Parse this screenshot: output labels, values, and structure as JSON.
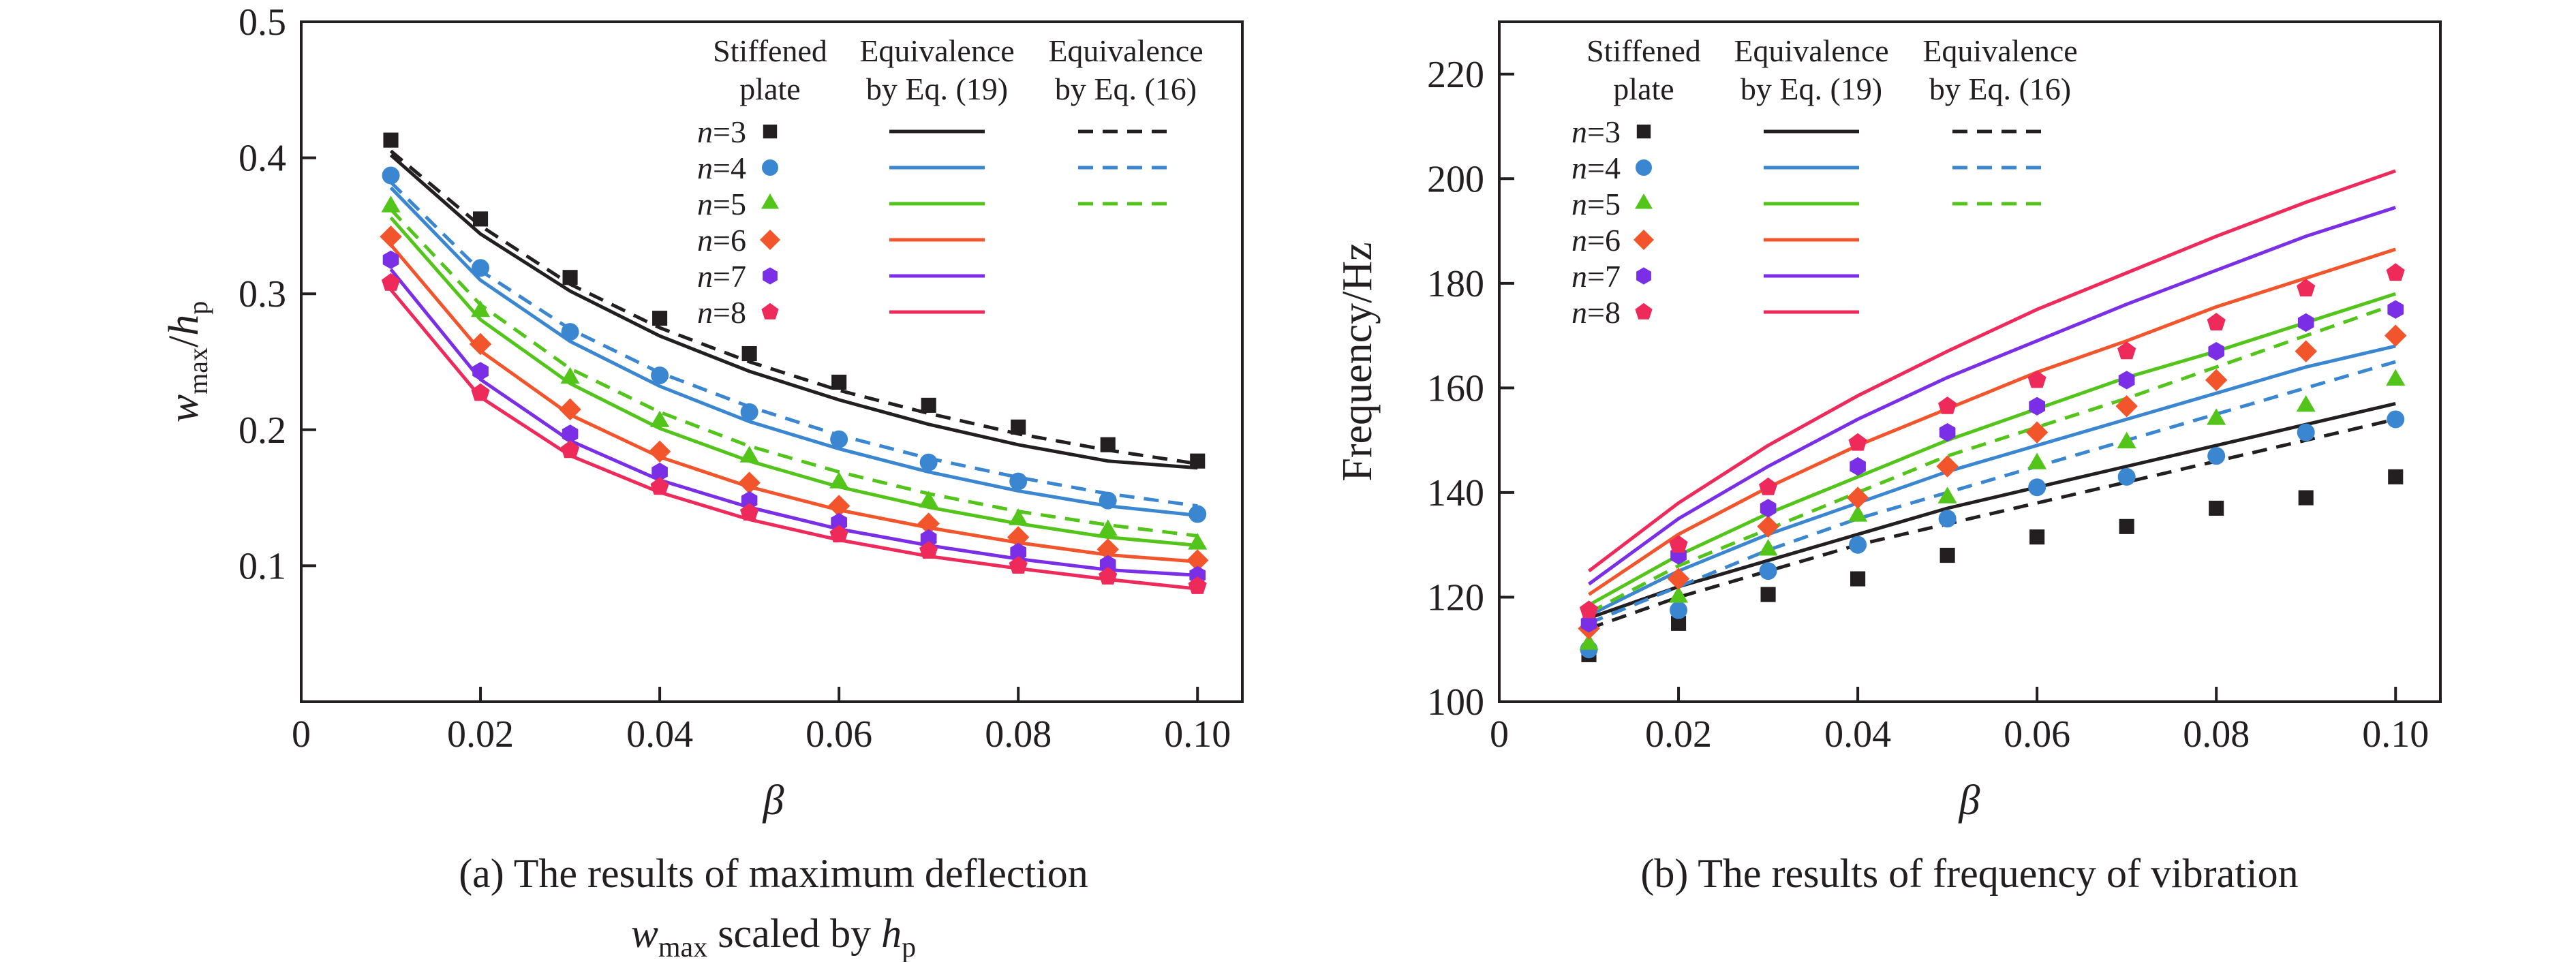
{
  "figure": {
    "caption_a": {
      "line1": "(a) The results of maximum deflection",
      "line2_var": "w",
      "line2_sub": "max",
      "line2_mid": " scaled by ",
      "line2_var2": "h",
      "line2_sub2": "p"
    },
    "caption_b": "(b) The results of frequency of vibration"
  },
  "legend": {
    "headers": {
      "col1": [
        "Stiffened",
        "plate"
      ],
      "col2": [
        "Equivalence",
        "by Eq. (19)"
      ],
      "col3": [
        "Equivalence",
        "by Eq. (16)"
      ]
    },
    "rows": [
      {
        "var": "n",
        "label": "=3",
        "color": "#231f20",
        "marker": "square",
        "dashed": true
      },
      {
        "var": "n",
        "label": "=4",
        "color": "#3b86d1",
        "marker": "circle",
        "dashed": true
      },
      {
        "var": "n",
        "label": "=5",
        "color": "#52c41a",
        "marker": "triangle",
        "dashed": true
      },
      {
        "var": "n",
        "label": "=6",
        "color": "#f2552c",
        "marker": "diamond",
        "dashed": false
      },
      {
        "var": "n",
        "label": "=7",
        "color": "#7a2ee6",
        "marker": "hexagon",
        "dashed": false
      },
      {
        "var": "n",
        "label": "=8",
        "color": "#ee2a5a",
        "marker": "pentagon",
        "dashed": false
      }
    ]
  },
  "chart_data": [
    {
      "type": "line",
      "panel": "a",
      "xlabel": "β",
      "ylabel": {
        "var": "w",
        "sub": "max",
        "slash": "/",
        "var2": "h",
        "sub2": "p"
      },
      "xlim": [
        0,
        0.105
      ],
      "ylim": [
        0,
        0.5
      ],
      "xticks": [
        0,
        0.02,
        0.04,
        0.06,
        0.08,
        0.1
      ],
      "xtick_labels": [
        "0",
        "0.02",
        "0.04",
        "0.06",
        "0.08",
        "0.10"
      ],
      "yticks": [
        0.1,
        0.2,
        0.3,
        0.4,
        0.5
      ],
      "ytick_labels": [
        "0.1",
        "0.2",
        "0.3",
        "0.4",
        "0.5"
      ],
      "x": [
        0.01,
        0.02,
        0.03,
        0.04,
        0.05,
        0.06,
        0.07,
        0.08,
        0.09,
        0.1
      ],
      "series": [
        {
          "name": "n=3",
          "scatter": [
            0.413,
            0.355,
            0.312,
            0.282,
            0.256,
            0.235,
            0.218,
            0.202,
            0.189,
            0.177
          ],
          "eq19": [
            0.402,
            0.344,
            0.302,
            0.269,
            0.243,
            0.222,
            0.204,
            0.189,
            0.177,
            0.172
          ],
          "eq16": [
            0.405,
            0.35,
            0.307,
            0.275,
            0.25,
            0.229,
            0.212,
            0.197,
            0.185,
            0.175
          ]
        },
        {
          "name": "n=4",
          "scatter": [
            0.387,
            0.319,
            0.272,
            0.24,
            0.213,
            0.193,
            0.176,
            0.162,
            0.148,
            0.138
          ],
          "eq19": [
            0.378,
            0.31,
            0.265,
            0.232,
            0.206,
            0.186,
            0.169,
            0.155,
            0.144,
            0.137
          ],
          "eq16": [
            0.382,
            0.317,
            0.274,
            0.242,
            0.217,
            0.196,
            0.179,
            0.165,
            0.153,
            0.144
          ]
        },
        {
          "name": "n=5",
          "scatter": [
            0.364,
            0.287,
            0.238,
            0.206,
            0.18,
            0.161,
            0.147,
            0.134,
            0.126,
            0.116
          ],
          "eq19": [
            0.356,
            0.281,
            0.234,
            0.201,
            0.177,
            0.158,
            0.143,
            0.131,
            0.121,
            0.115
          ],
          "eq16": [
            0.362,
            0.292,
            0.245,
            0.213,
            0.188,
            0.169,
            0.153,
            0.14,
            0.13,
            0.122
          ]
        },
        {
          "name": "n=6",
          "scatter": [
            0.342,
            0.263,
            0.215,
            0.184,
            0.161,
            0.144,
            0.131,
            0.121,
            0.112,
            0.104
          ],
          "eq19": [
            0.336,
            0.258,
            0.211,
            0.18,
            0.158,
            0.141,
            0.128,
            0.117,
            0.108,
            0.103
          ]
        },
        {
          "name": "n=7",
          "scatter": [
            0.325,
            0.243,
            0.197,
            0.169,
            0.148,
            0.132,
            0.12,
            0.11,
            0.101,
            0.093
          ],
          "eq19": [
            0.318,
            0.237,
            0.192,
            0.163,
            0.143,
            0.127,
            0.115,
            0.105,
            0.097,
            0.093
          ]
        },
        {
          "name": "n=8",
          "scatter": [
            0.308,
            0.227,
            0.185,
            0.158,
            0.139,
            0.123,
            0.111,
            0.1,
            0.092,
            0.085
          ],
          "eq19": [
            0.303,
            0.224,
            0.181,
            0.154,
            0.134,
            0.119,
            0.107,
            0.098,
            0.09,
            0.083
          ]
        }
      ]
    },
    {
      "type": "line",
      "panel": "b",
      "xlabel": "β",
      "ylabel": "Frequency/Hz",
      "xlim": [
        0,
        0.105
      ],
      "ylim": [
        100,
        230
      ],
      "xticks": [
        0,
        0.02,
        0.04,
        0.06,
        0.08,
        0.1
      ],
      "xtick_labels": [
        "0",
        "0.02",
        "0.04",
        "0.06",
        "0.08",
        "0.10"
      ],
      "yticks": [
        100,
        120,
        140,
        160,
        180,
        200,
        220
      ],
      "ytick_labels": [
        "100",
        "120",
        "140",
        "160",
        "180",
        "200",
        "220"
      ],
      "x": [
        0.01,
        0.02,
        0.03,
        0.04,
        0.05,
        0.06,
        0.07,
        0.08,
        0.09,
        0.1
      ],
      "series": [
        {
          "name": "n=3",
          "scatter": [
            109,
            115,
            120.5,
            123.5,
            128,
            131.5,
            133.5,
            137,
            139,
            143
          ],
          "eq19": [
            116,
            122,
            127,
            132,
            137,
            141,
            145,
            149,
            153,
            157
          ],
          "eq16": [
            114,
            120,
            125,
            130,
            134,
            138,
            142,
            146,
            150,
            154
          ]
        },
        {
          "name": "n=4",
          "scatter": [
            110,
            117.5,
            125,
            130,
            135,
            141,
            143,
            147,
            151.5,
            154
          ],
          "eq19": [
            116.5,
            125,
            132,
            138,
            144,
            149,
            154,
            159,
            164,
            168
          ],
          "eq16": [
            115,
            122,
            129,
            135,
            140,
            145,
            150,
            155,
            160,
            165
          ]
        },
        {
          "name": "n=5",
          "scatter": [
            111,
            120,
            129,
            135.5,
            139,
            145.5,
            149.5,
            154,
            156.5,
            161.5
          ],
          "eq19": [
            118.5,
            128,
            136,
            143,
            150,
            156,
            162,
            167,
            172.5,
            178
          ],
          "eq16": [
            117,
            126,
            133,
            140,
            147,
            152.5,
            158,
            164,
            170,
            176
          ]
        },
        {
          "name": "n=6",
          "scatter": [
            114,
            123.5,
            133.5,
            139,
            145,
            151.5,
            156.5,
            161.5,
            167,
            170
          ],
          "eq19": [
            120.5,
            132,
            141,
            149,
            156,
            163,
            169,
            175.5,
            181,
            186.5
          ]
        },
        {
          "name": "n=7",
          "scatter": [
            115,
            128,
            137,
            145,
            151.5,
            156.5,
            161.5,
            167,
            172.5,
            175
          ],
          "eq19": [
            122.5,
            135,
            145,
            154,
            162,
            169,
            176,
            182.5,
            189,
            194.5
          ]
        },
        {
          "name": "n=8",
          "scatter": [
            117.5,
            130,
            141,
            149.5,
            156.5,
            161.5,
            167,
            172.5,
            179,
            182
          ],
          "eq19": [
            125,
            138,
            149,
            158.5,
            167,
            175,
            182,
            189,
            195.5,
            201.5
          ]
        }
      ]
    }
  ]
}
